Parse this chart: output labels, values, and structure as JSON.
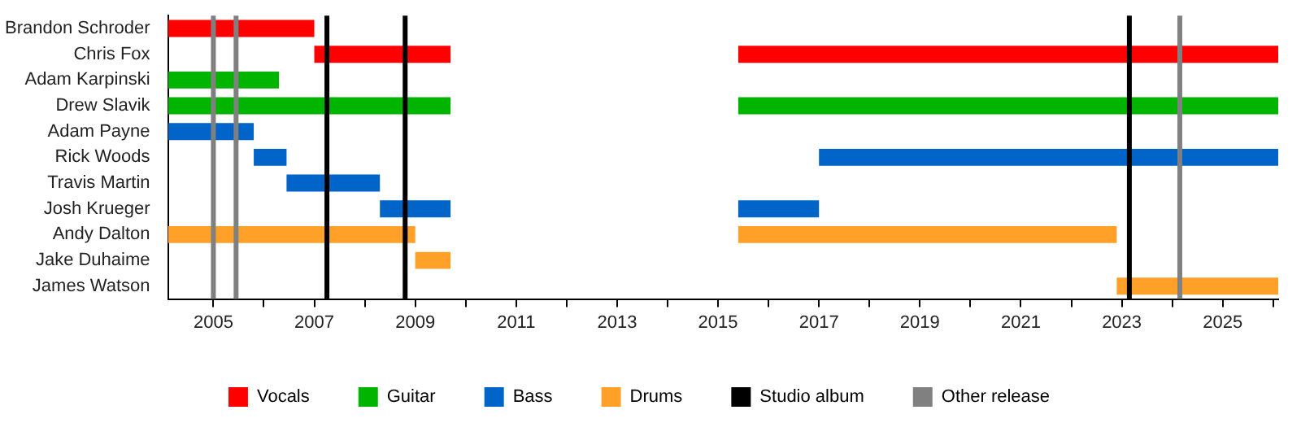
{
  "chart_data": {
    "type": "bar",
    "orientation": "horizontal",
    "legend": "bottom",
    "grid": false,
    "categories": [
      "Brandon Schroder",
      "Chris Fox",
      "Adam Karpinski",
      "Drew Slavik",
      "Adam Payne",
      "Rick Woods",
      "Travis Martin",
      "Josh Krueger",
      "Andy Dalton",
      "Jake Duhaime",
      "James Watson"
    ],
    "series": [
      {
        "name": "Vocals",
        "color": "#ff0000",
        "base": [
          2004.1,
          2007.0,
          null,
          null,
          null,
          null,
          null,
          null,
          null,
          null,
          null
        ],
        "values": [
          2.9,
          2.7,
          null,
          null,
          null,
          null,
          null,
          null,
          null,
          null,
          null
        ]
      },
      {
        "color": "#ff0000",
        "base": [
          null,
          2015.4,
          null,
          null,
          null,
          null,
          null,
          null,
          null,
          null,
          null
        ],
        "values": [
          null,
          10.7,
          null,
          null,
          null,
          null,
          null,
          null,
          null,
          null,
          null
        ]
      },
      {
        "name": "Guitar",
        "color": "#00b400",
        "base": [
          null,
          null,
          2004.1,
          2004.1,
          null,
          null,
          null,
          null,
          null,
          null,
          null
        ],
        "values": [
          null,
          null,
          2.2,
          5.6,
          null,
          null,
          null,
          null,
          null,
          null,
          null
        ]
      },
      {
        "color": "#00b400",
        "base": [
          null,
          null,
          null,
          2015.4,
          null,
          null,
          null,
          null,
          null,
          null,
          null
        ],
        "values": [
          null,
          null,
          null,
          10.7,
          null,
          null,
          null,
          null,
          null,
          null,
          null
        ]
      },
      {
        "name": "Bass",
        "color": "#0064c8",
        "base": [
          null,
          null,
          null,
          null,
          2004.1,
          2005.8,
          2006.45,
          2008.3,
          null,
          null,
          null
        ],
        "values": [
          null,
          null,
          null,
          null,
          1.7,
          0.65,
          1.85,
          1.4,
          null,
          null,
          null
        ]
      },
      {
        "color": "#0064c8",
        "base": [
          null,
          null,
          null,
          null,
          null,
          2017.0,
          null,
          2015.4,
          null,
          null,
          null
        ],
        "values": [
          null,
          null,
          null,
          null,
          null,
          9.1,
          null,
          1.6,
          null,
          null,
          null
        ]
      },
      {
        "name": "Drums",
        "color": "#ffa028",
        "base": [
          null,
          null,
          null,
          null,
          null,
          null,
          null,
          null,
          2004.1,
          2009.0,
          2022.9
        ],
        "values": [
          null,
          null,
          null,
          null,
          null,
          null,
          null,
          null,
          4.9,
          0.7,
          3.2
        ]
      },
      {
        "color": "#ffa028",
        "base": [
          null,
          null,
          null,
          null,
          null,
          null,
          null,
          null,
          2015.4,
          null,
          null
        ],
        "values": [
          null,
          null,
          null,
          null,
          null,
          null,
          null,
          null,
          7.5,
          null,
          null
        ]
      }
    ],
    "ref_lines": [
      {
        "axis": "x",
        "value": 2007.25,
        "label": "Studio album",
        "color": "#000000"
      },
      {
        "axis": "x",
        "value": 2008.8,
        "label": null,
        "color": "#000000"
      },
      {
        "axis": "x",
        "value": 2023.15,
        "label": null,
        "color": "#000000"
      },
      {
        "axis": "x",
        "value": 2005.0,
        "label": "Other release",
        "color": "#808080"
      },
      {
        "axis": "x",
        "value": 2005.45,
        "label": null,
        "color": "#808080"
      },
      {
        "axis": "x",
        "value": 2024.15,
        "label": null,
        "color": "#808080"
      }
    ],
    "xlim": [
      2004.1,
      2026.1
    ],
    "xticks": [
      {
        "value": 2005,
        "label": "2005"
      },
      {
        "value": 2006,
        "label": null
      },
      {
        "value": 2007,
        "label": "2007"
      },
      {
        "value": 2008,
        "label": null
      },
      {
        "value": 2009,
        "label": "2009"
      },
      {
        "value": 2010,
        "label": null
      },
      {
        "value": 2011,
        "label": "2011"
      },
      {
        "value": 2012,
        "label": null
      },
      {
        "value": 2013,
        "label": "2013"
      },
      {
        "value": 2014,
        "label": null
      },
      {
        "value": 2015,
        "label": "2015"
      },
      {
        "value": 2016,
        "label": null
      },
      {
        "value": 2017,
        "label": "2017"
      },
      {
        "value": 2018,
        "label": null
      },
      {
        "value": 2019,
        "label": "2019"
      },
      {
        "value": 2020,
        "label": null
      },
      {
        "value": 2021,
        "label": "2021"
      },
      {
        "value": 2022,
        "label": null
      },
      {
        "value": 2023,
        "label": "2023"
      },
      {
        "value": 2024,
        "label": null
      },
      {
        "value": 2025,
        "label": "2025"
      },
      {
        "value": 2026,
        "label": null
      }
    ]
  }
}
